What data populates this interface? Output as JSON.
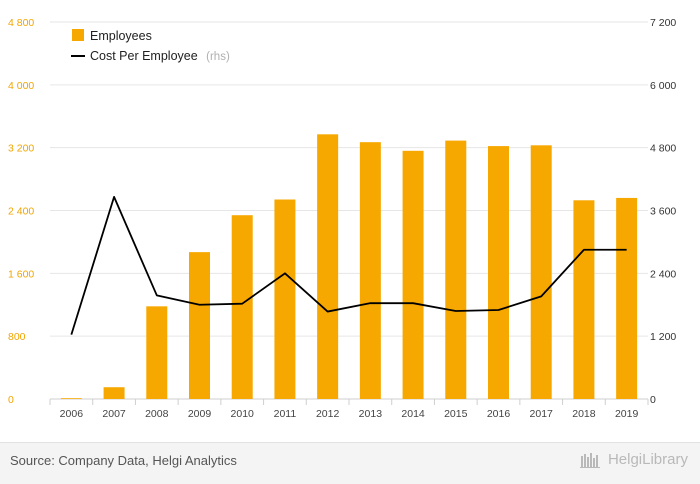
{
  "chart_data": {
    "type": "bar",
    "categories": [
      "2006",
      "2007",
      "2008",
      "2009",
      "2010",
      "2011",
      "2012",
      "2013",
      "2014",
      "2015",
      "2016",
      "2017",
      "2018",
      "2019"
    ],
    "series": [
      {
        "name": "Employees",
        "type": "bar",
        "axis": "left",
        "color": "#f7a800",
        "values": [
          10,
          150,
          1180,
          1870,
          2340,
          2540,
          3370,
          3270,
          3160,
          3290,
          3220,
          3230,
          2530,
          2560
        ]
      },
      {
        "name": "Cost Per Employee",
        "type": "line",
        "axis": "right",
        "color": "#000000",
        "values": [
          1230,
          3860,
          1980,
          1800,
          1820,
          2400,
          1670,
          1830,
          1830,
          1680,
          1700,
          1960,
          2850,
          2850
        ]
      }
    ],
    "legend_note": "(rhs)",
    "legend_position": "top-left",
    "y_left": {
      "range": [
        0,
        4800
      ],
      "ticks": [
        "0",
        "800",
        "1 600",
        "2 400",
        "3 200",
        "4 000",
        "4 800"
      ],
      "tick_values": [
        0,
        800,
        1600,
        2400,
        3200,
        4000,
        4800
      ]
    },
    "y_right": {
      "range": [
        0,
        7200
      ],
      "ticks": [
        "0",
        "1 200",
        "2 400",
        "3 600",
        "4 800",
        "6 000",
        "7 200"
      ],
      "tick_values": [
        0,
        1200,
        2400,
        3600,
        4800,
        6000,
        7200
      ]
    },
    "grid": "horizontal",
    "grid_color": "#e6e6e6"
  },
  "footer": {
    "source": "Source: Company Data, Helgi Analytics",
    "brand": "HelgiLibrary"
  }
}
